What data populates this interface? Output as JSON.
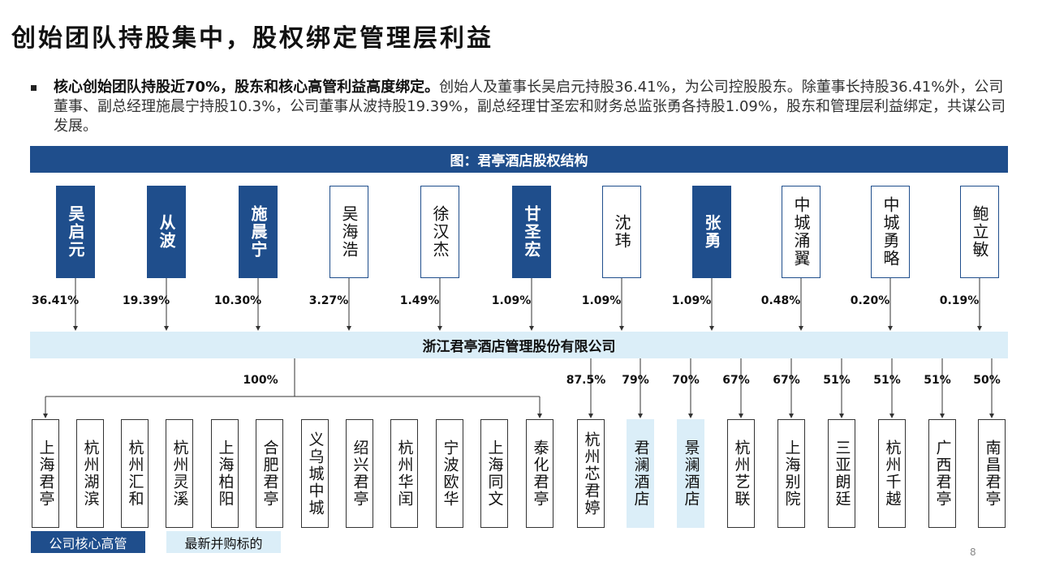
{
  "title": "创始团队持股集中，股权绑定管理层利益",
  "bullet": {
    "bold": "核心创始团队持股近70%，股东和核心高管利益高度绑定。",
    "text": "创始人及董事长吴启元持股36.41%，为公司控股股东。除董事长持股36.41%外，公司董事、副总经理施晨宁持股10.3%，公司董事从波持股19.39%，副总经理甘圣宏和财务总监张勇各持股1.09%，股东和管理层利益绑定，共谋公司发展。"
  },
  "banner": "图：君亭酒店股权结构",
  "shareholders": [
    {
      "name": "吴启元",
      "pct": "36.41%",
      "core": true
    },
    {
      "name": "从波",
      "pct": "19.39%",
      "core": true
    },
    {
      "name": "施晨宁",
      "pct": "10.30%",
      "core": true
    },
    {
      "name": "吴海浩",
      "pct": "3.27%",
      "core": false
    },
    {
      "name": "徐汉杰",
      "pct": "1.49%",
      "core": false
    },
    {
      "name": "甘圣宏",
      "pct": "1.09%",
      "core": true
    },
    {
      "name": "沈玮",
      "pct": "1.09%",
      "core": false
    },
    {
      "name": "张勇",
      "pct": "1.09%",
      "core": true
    },
    {
      "name": "中城涌翼",
      "pct": "0.48%",
      "core": false
    },
    {
      "name": "中城勇略",
      "pct": "0.20%",
      "core": false
    },
    {
      "name": "鲍立敏",
      "pct": "0.19%",
      "core": false
    }
  ],
  "company": "浙江君亭酒店管理股份有限公司",
  "group_pct": "100%",
  "subsidiaries": [
    {
      "name": "上海君亭",
      "pct": "",
      "new": false
    },
    {
      "name": "杭州湖滨",
      "pct": "",
      "new": false
    },
    {
      "name": "杭州汇和",
      "pct": "",
      "new": false
    },
    {
      "name": "杭州灵溪",
      "pct": "",
      "new": false
    },
    {
      "name": "上海柏阳",
      "pct": "",
      "new": false
    },
    {
      "name": "合肥君亭",
      "pct": "",
      "new": false
    },
    {
      "name": "义乌城中城",
      "pct": "",
      "new": false
    },
    {
      "name": "绍兴君亭",
      "pct": "",
      "new": false
    },
    {
      "name": "杭州华闰",
      "pct": "",
      "new": false
    },
    {
      "name": "宁波欧华",
      "pct": "",
      "new": false
    },
    {
      "name": "上海同文",
      "pct": "",
      "new": false
    },
    {
      "name": "泰化君亭",
      "pct": "",
      "new": false
    },
    {
      "name": "杭州芯君婷",
      "pct": "87.5%",
      "new": false
    },
    {
      "name": "君澜酒店",
      "pct": "79%",
      "new": true
    },
    {
      "name": "景澜酒店",
      "pct": "70%",
      "new": true
    },
    {
      "name": "杭州艺联",
      "pct": "67%",
      "new": false
    },
    {
      "name": "上海别院",
      "pct": "67%",
      "new": false
    },
    {
      "name": "三亚朗廷",
      "pct": "51%",
      "new": false
    },
    {
      "name": "杭州千越",
      "pct": "51%",
      "new": false
    },
    {
      "name": "广西君亭",
      "pct": "51%",
      "new": false
    },
    {
      "name": "南昌君亭",
      "pct": "50%",
      "new": false
    }
  ],
  "legend": {
    "core": "公司核心高管",
    "new": "最新并购标的"
  },
  "page_number": "8",
  "colors": {
    "navy": "#1f4e8c",
    "light": "#dbeef8"
  }
}
